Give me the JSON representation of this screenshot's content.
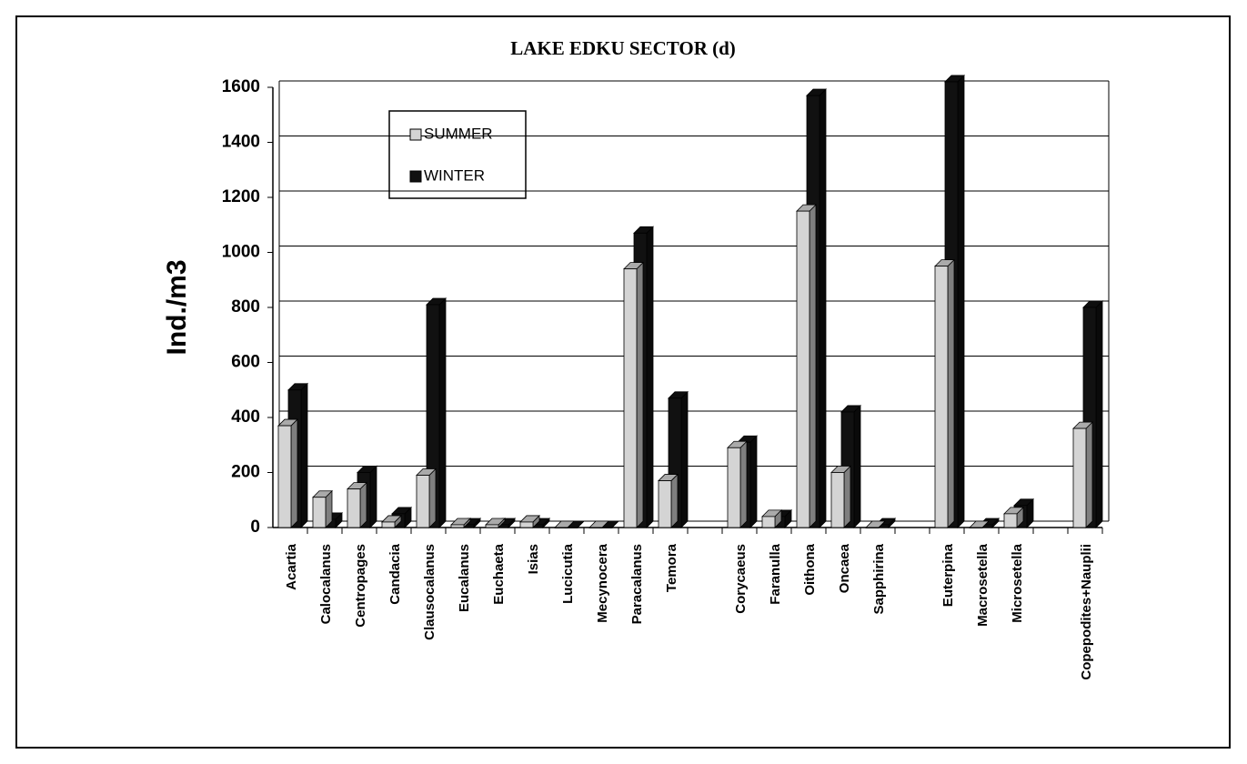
{
  "chart_data": {
    "type": "bar",
    "title": "LAKE EDKU SECTOR (d)",
    "y_label": "Ind./m3",
    "categories": [
      "Acartia",
      "Calocalanus",
      "Centropages",
      "Candacia",
      "Clausocalanus",
      "Eucalanus",
      "Euchaeta",
      "Isias",
      "Lucicutia",
      "Mecynocera",
      "Paracalanus",
      "Temora",
      null,
      "Corycaeus",
      "Faranulla",
      "Oithona",
      "Oncaea",
      "Sapphirina",
      null,
      "Euterpina",
      "Macrosetella",
      "Microsetella",
      null,
      "Copepodites+Nauplii"
    ],
    "series": [
      {
        "name": "SUMMER",
        "color": "#d4d4d4",
        "values": [
          370,
          110,
          140,
          20,
          190,
          10,
          10,
          20,
          0,
          0,
          940,
          170,
          null,
          290,
          40,
          1150,
          200,
          0,
          null,
          950,
          0,
          50,
          null,
          360
        ]
      },
      {
        "name": "WINTER",
        "color": "#111111",
        "values": [
          500,
          30,
          200,
          50,
          810,
          10,
          10,
          10,
          0,
          0,
          1070,
          470,
          null,
          310,
          40,
          1570,
          420,
          10,
          null,
          1620,
          10,
          80,
          null,
          800
        ]
      }
    ],
    "ylim": [
      0,
      1600
    ],
    "yticks": [
      0,
      200,
      400,
      600,
      800,
      1000,
      1200,
      1400,
      1600
    ],
    "grid": true
  }
}
